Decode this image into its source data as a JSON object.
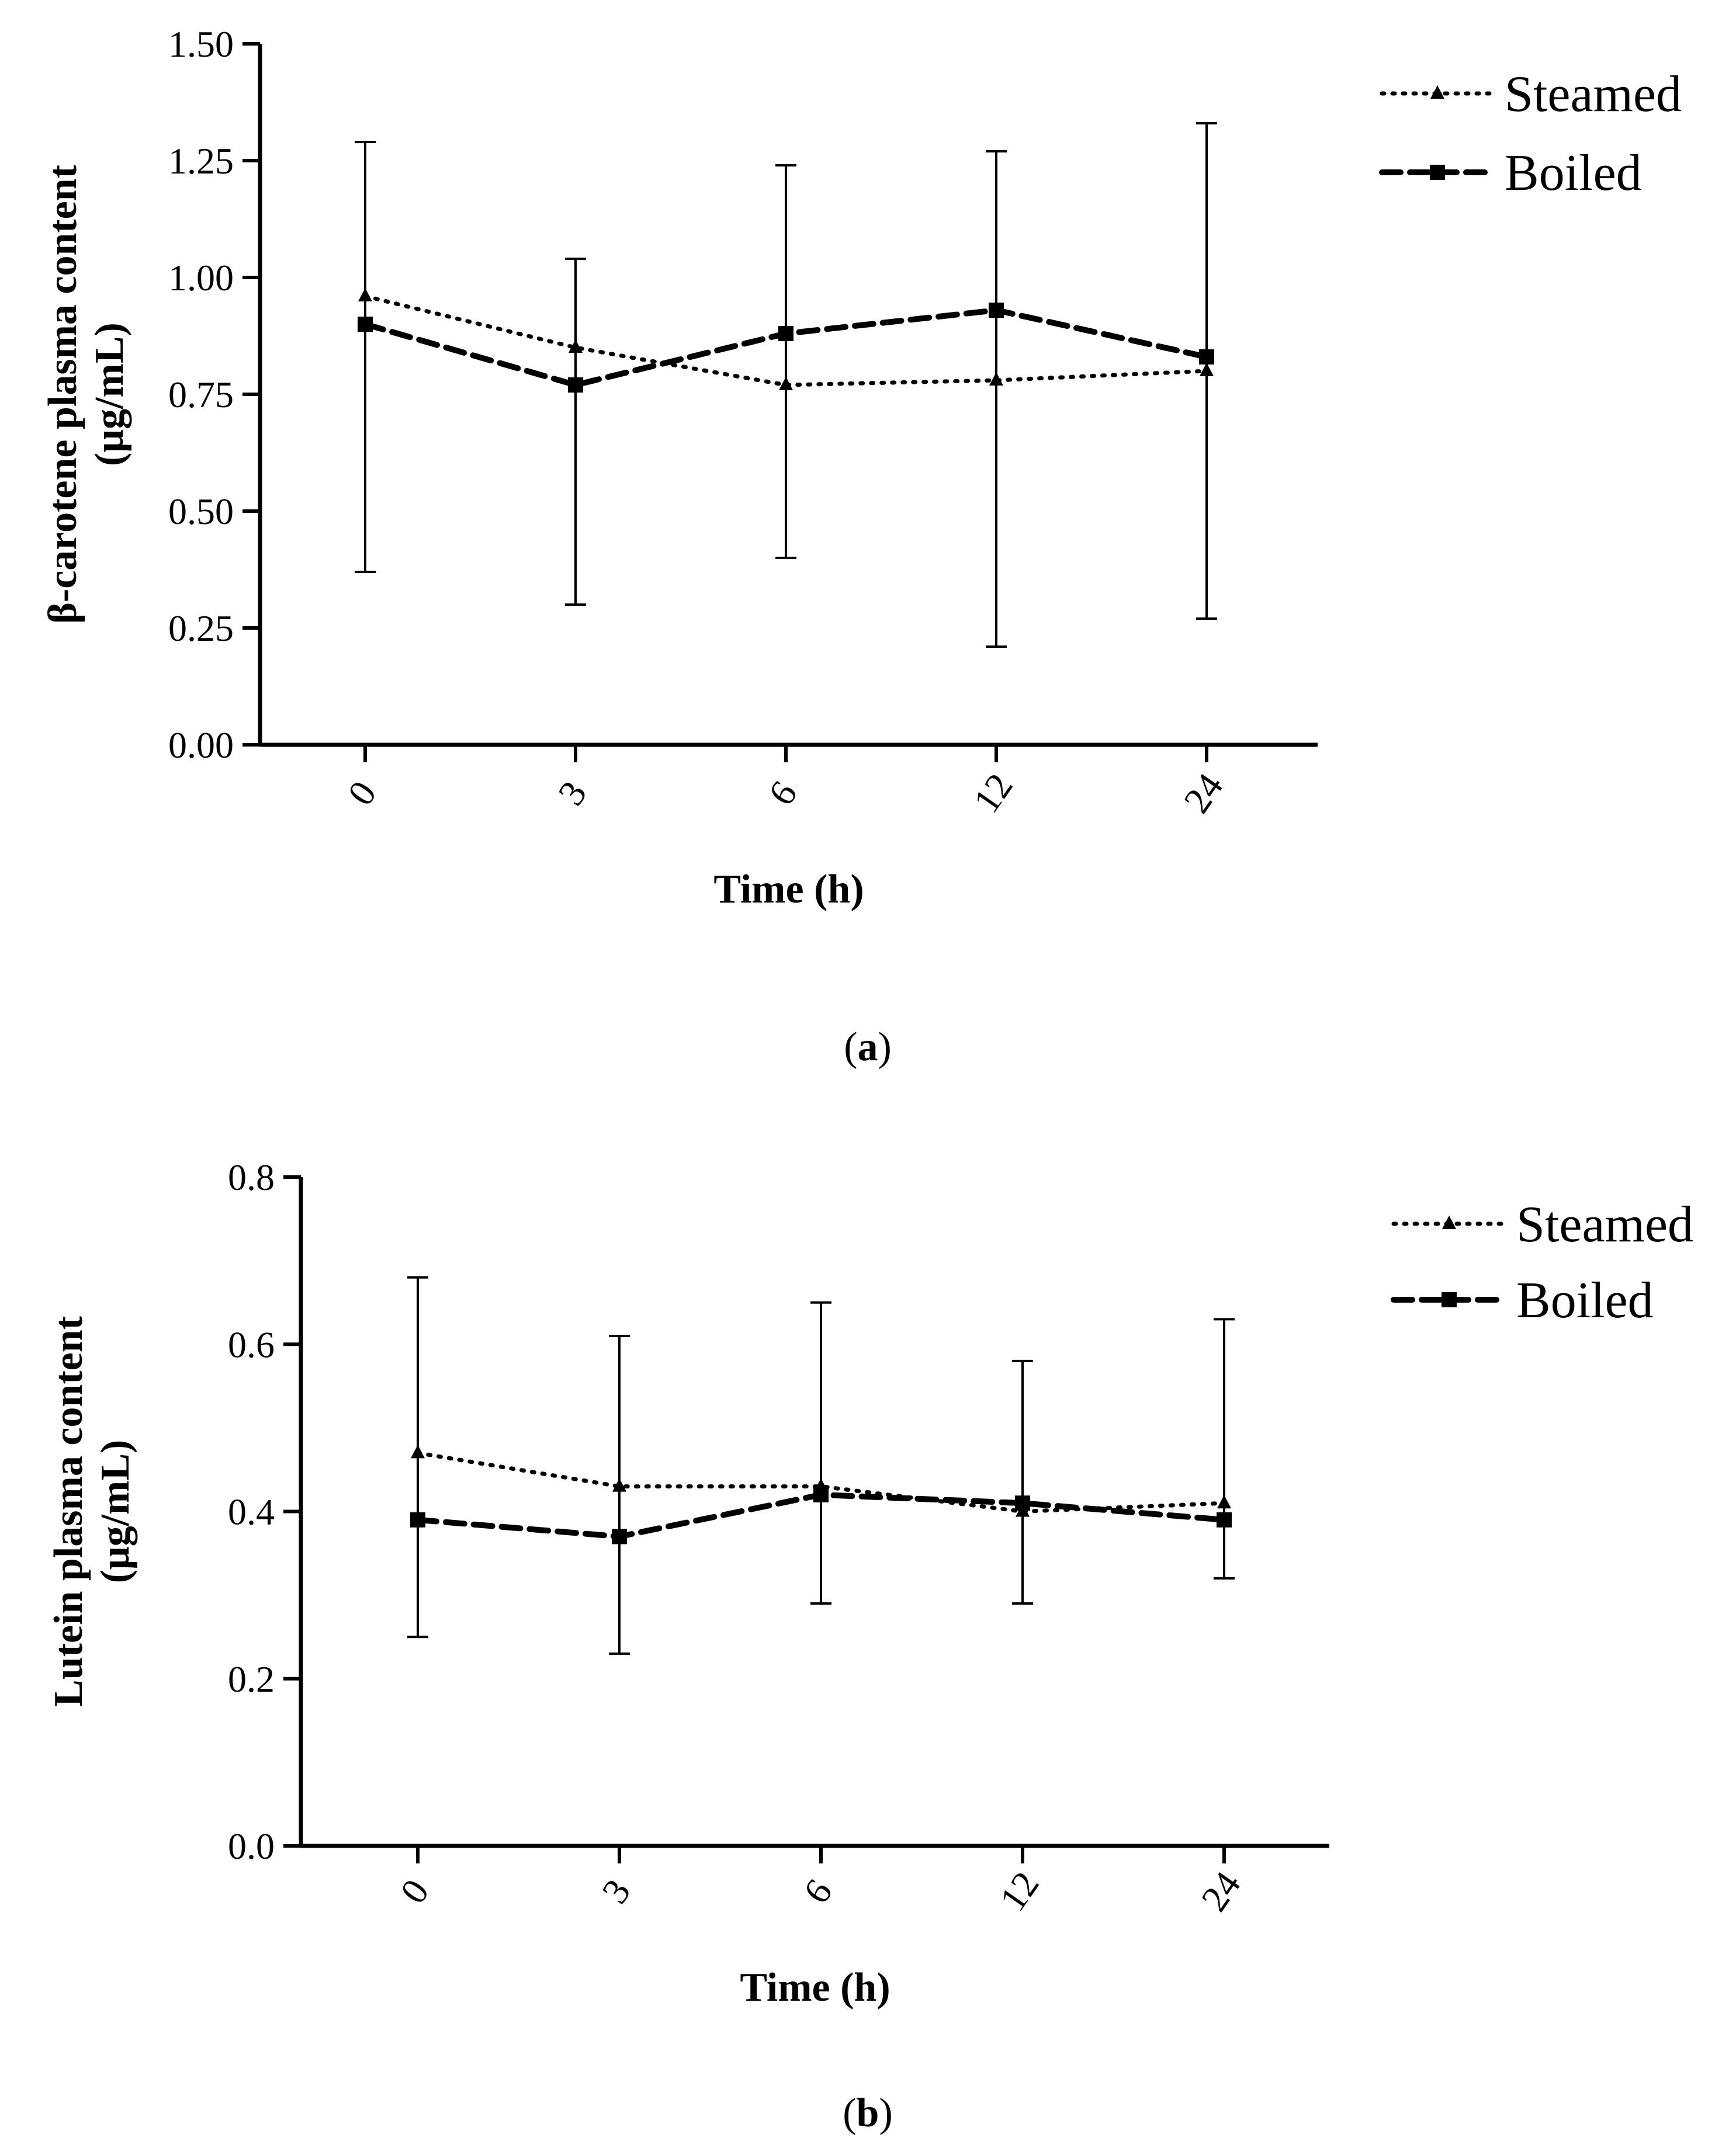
{
  "chart_data": [
    {
      "type": "line",
      "panel_label": "a",
      "xlabel": "Time (h)",
      "ylabel_line1": "β-carotene plasma content",
      "ylabel_line2": "(μg/mL)",
      "categories": [
        "0",
        "3",
        "6",
        "12",
        "24"
      ],
      "ylim": [
        0,
        1.5
      ],
      "yticks": [
        "0.00",
        "0.25",
        "0.50",
        "0.75",
        "1.00",
        "1.25",
        "1.50"
      ],
      "ytick_values": [
        0,
        0.25,
        0.5,
        0.75,
        1.0,
        1.25,
        1.5
      ],
      "series": [
        {
          "name": "Steamed",
          "style": "dotted",
          "marker": "triangle",
          "values": [
            0.96,
            0.85,
            0.77,
            0.78,
            0.8
          ],
          "error_upper": [
            1.29,
            1.04,
            1.24,
            1.27,
            1.33
          ],
          "error_lower": [
            0.37,
            0.3,
            0.4,
            0.21,
            0.27
          ]
        },
        {
          "name": "Boiled",
          "style": "dashed",
          "marker": "square",
          "values": [
            0.9,
            0.77,
            0.88,
            0.93,
            0.83
          ]
        }
      ]
    },
    {
      "type": "line",
      "panel_label": "b",
      "xlabel": "Time (h)",
      "ylabel_line1": "Lutein plasma content",
      "ylabel_line2": "(μg/mL)",
      "categories": [
        "0",
        "3",
        "6",
        "12",
        "24"
      ],
      "ylim": [
        0,
        0.8
      ],
      "yticks": [
        "0.0",
        "0.2",
        "0.4",
        "0.6",
        "0.8"
      ],
      "ytick_values": [
        0,
        0.2,
        0.4,
        0.6,
        0.8
      ],
      "series": [
        {
          "name": "Steamed",
          "style": "dotted",
          "marker": "triangle",
          "values": [
            0.47,
            0.43,
            0.43,
            0.4,
            0.41
          ],
          "error_upper": [
            0.68,
            0.61,
            0.65,
            0.58,
            0.63
          ],
          "error_lower": [
            0.25,
            0.23,
            0.29,
            0.29,
            0.32
          ]
        },
        {
          "name": "Boiled",
          "style": "dashed",
          "marker": "square",
          "values": [
            0.39,
            0.37,
            0.42,
            0.41,
            0.39
          ]
        }
      ]
    }
  ],
  "captions": {
    "a": "a",
    "b": "b"
  }
}
